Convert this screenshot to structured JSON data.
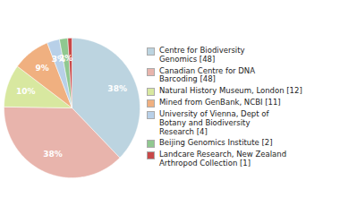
{
  "chart_data": {
    "type": "pie",
    "categories": [
      "Centre for Biodiversity\nGenomics [48]",
      "Canadian Centre for DNA\nBarcoding [48]",
      "Natural History Museum, London [12]",
      "Mined from GenBank, NCBI [11]",
      "University of Vienna, Dept of\nBotany and Biodiversity\nResearch [4]",
      "Beijing Genomics Institute [2]",
      "Landcare Research, New Zealand\nArthropod Collection [1]"
    ],
    "values": [
      38,
      38,
      10,
      9,
      3,
      2,
      1
    ],
    "value_labels": [
      "38%",
      "38%",
      "10%",
      "9%",
      "3%",
      "2%",
      null
    ],
    "colors": [
      "#bcd4e0",
      "#e8b4ac",
      "#d8e8a0",
      "#f0b080",
      "#b8d0e8",
      "#90c890",
      "#c84848"
    ],
    "data_labels": true,
    "legend": "right"
  }
}
